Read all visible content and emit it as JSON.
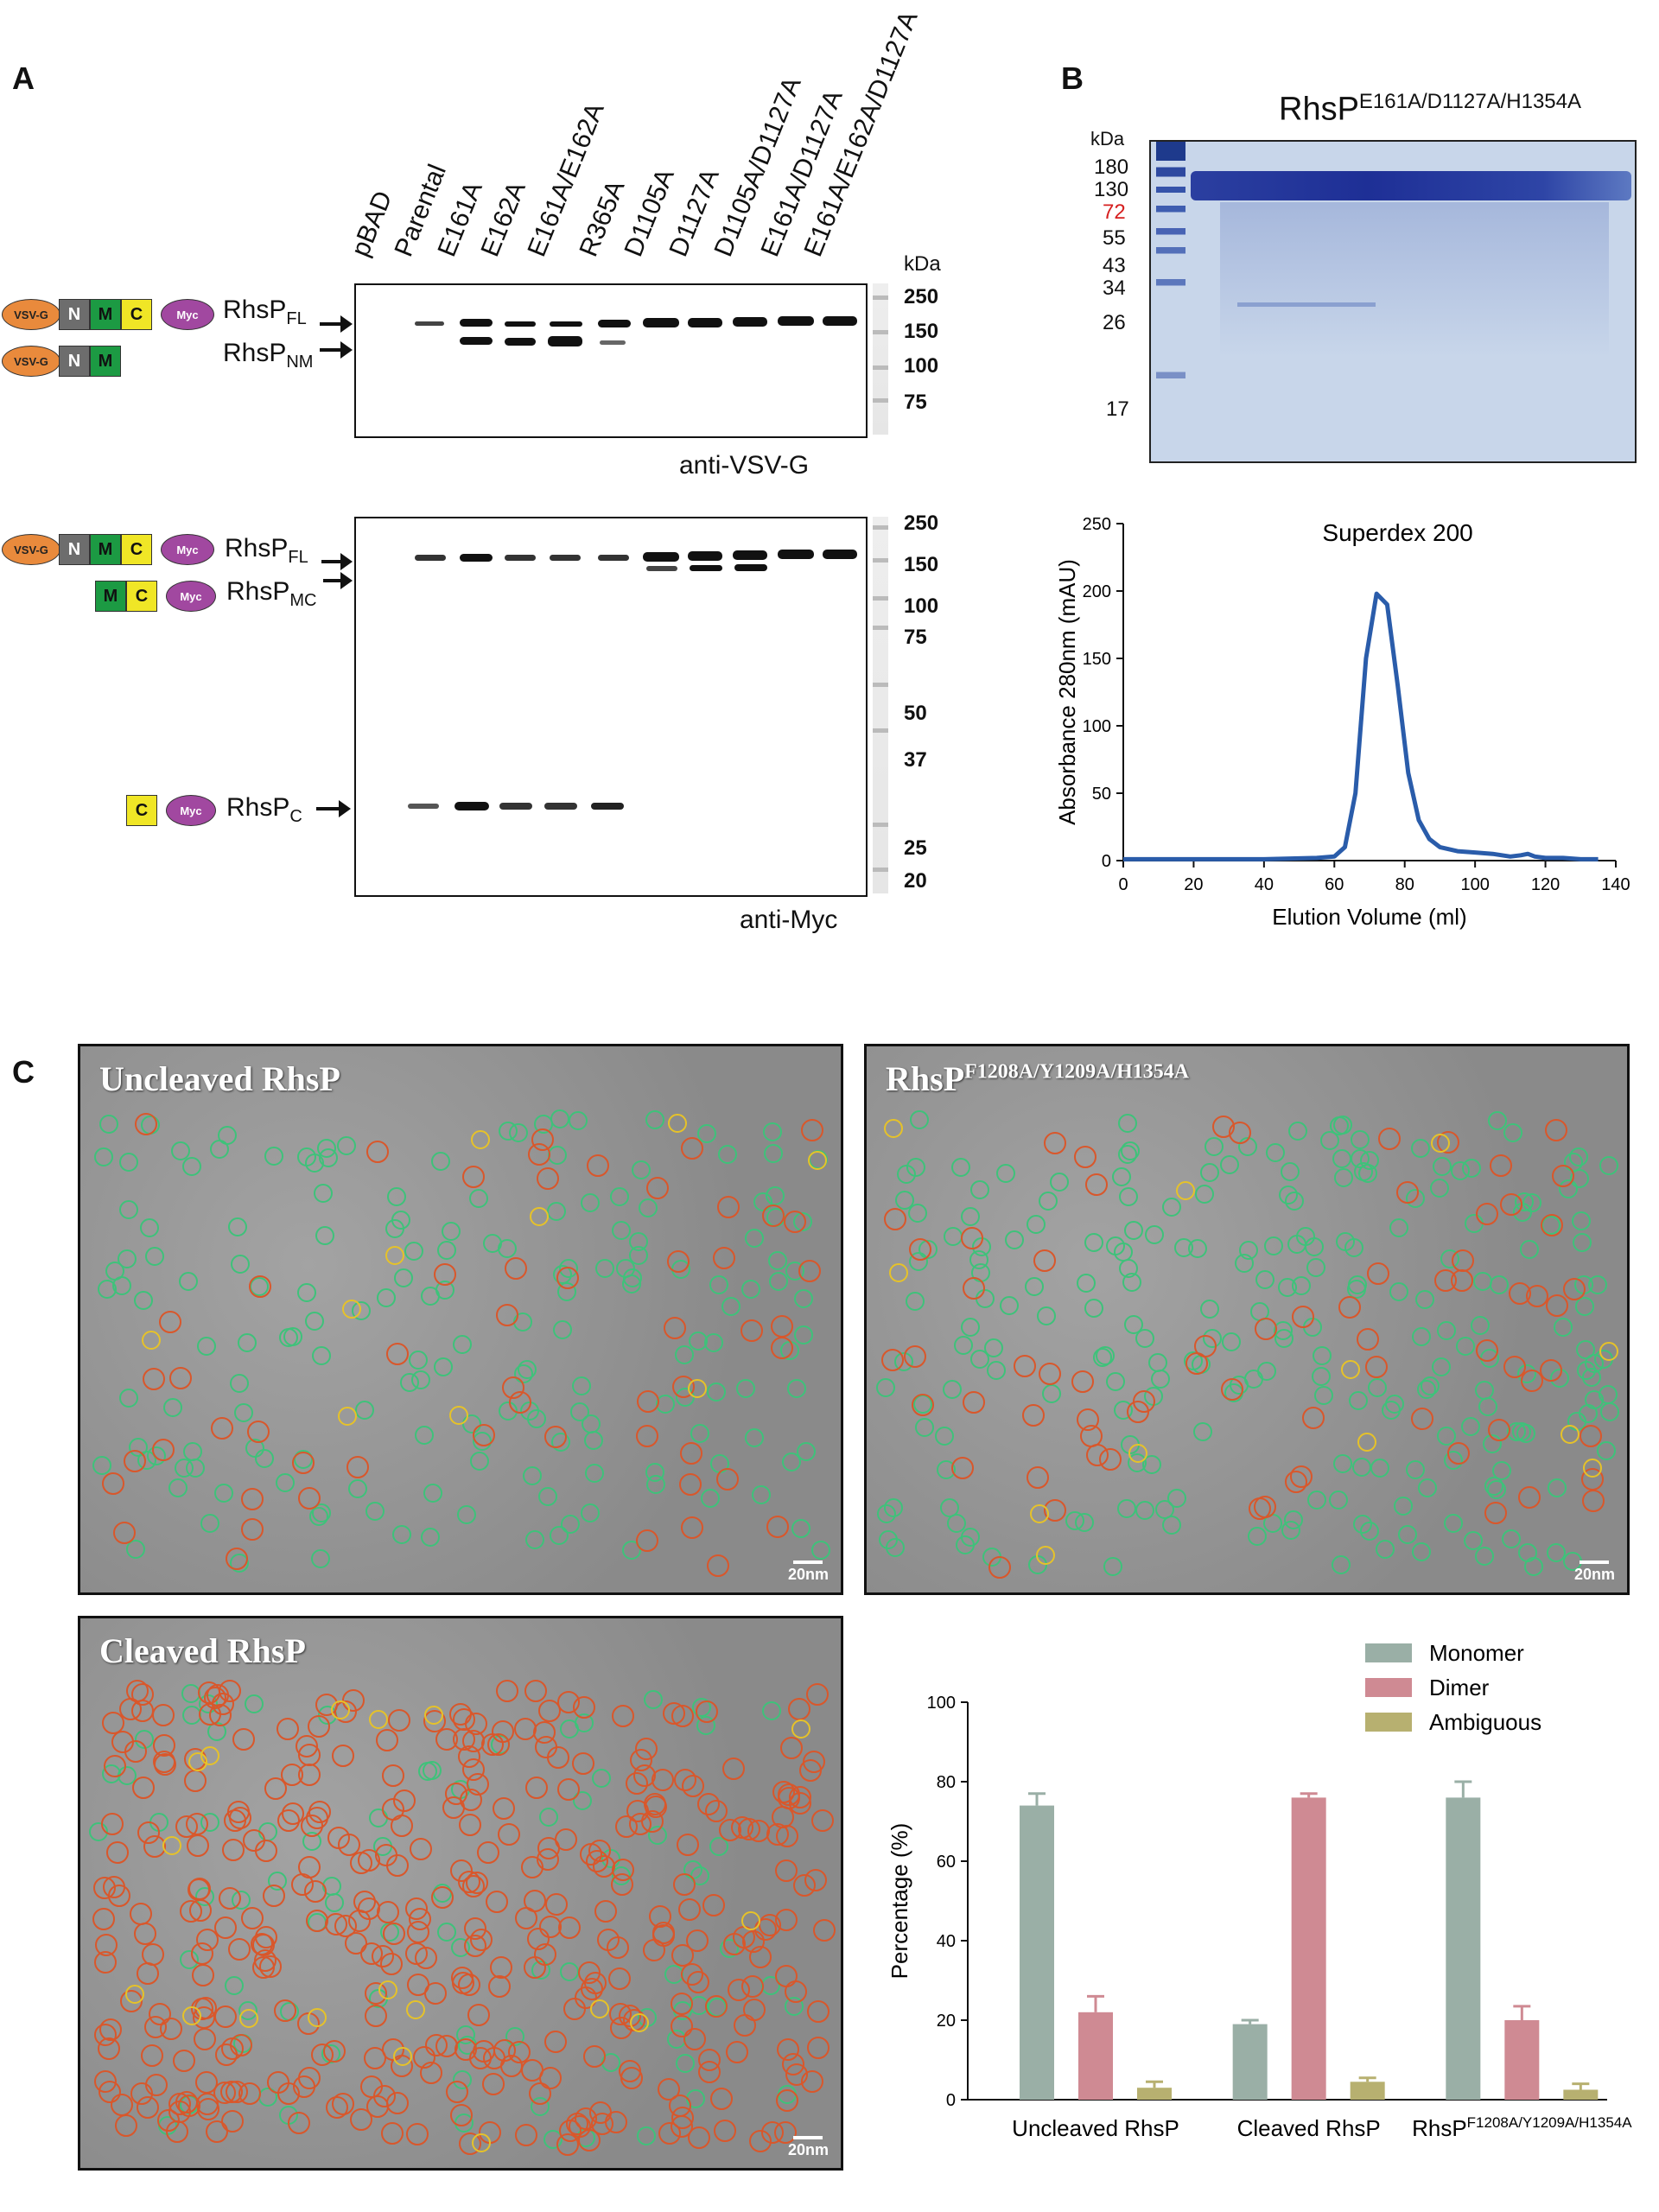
{
  "panels": {
    "a": "A",
    "b": "B",
    "c": "C"
  },
  "panel_a": {
    "lanes": [
      "pBAD",
      "Parental",
      "E161A",
      "E162A",
      "E161A/E162A",
      "R365A",
      "D1105A",
      "D1127A",
      "D1105A/D1127A",
      "E161A/D1127A",
      "E161A/E162A/D1127A"
    ],
    "kda_unit": "kDa",
    "blot1": {
      "antibody": "anti-VSV-G",
      "markers": [
        "250",
        "150",
        "100",
        "75"
      ],
      "labels": {
        "fl_main": "RhsP",
        "fl_sub": "FL",
        "nm_main": "RhsP",
        "nm_sub": "NM"
      }
    },
    "blot2": {
      "antibody": "anti-Myc",
      "markers": [
        "250",
        "150",
        "100",
        "75",
        "50",
        "37",
        "25",
        "20"
      ],
      "labels": {
        "fl_main": "RhsP",
        "fl_sub": "FL",
        "mc_main": "RhsP",
        "mc_sub": "MC",
        "c_main": "RhsP",
        "c_sub": "C"
      }
    },
    "construct_parts": {
      "vsvg": "VSV-G",
      "n": "N",
      "m": "M",
      "c": "C",
      "myc": "Myc"
    }
  },
  "panel_b": {
    "title_main": "RhsP",
    "title_sup": "E161A/D1127A/H1354A",
    "kda_unit": "kDa",
    "gel_markers": [
      "180",
      "130",
      "72",
      "55",
      "43",
      "34",
      "26",
      "17"
    ],
    "highlight_marker": "72",
    "highlight_color": "#d62020",
    "chart_data": {
      "type": "line",
      "title": "Superdex 200",
      "xlabel": "Elution Volume (ml)",
      "ylabel": "Absorbance 280nm (mAU)",
      "xlim": [
        0,
        140
      ],
      "ylim": [
        0,
        250
      ],
      "xticks": [
        0,
        20,
        40,
        60,
        80,
        100,
        120,
        140
      ],
      "yticks": [
        0,
        50,
        100,
        150,
        200,
        250
      ],
      "color": "#2a5caa",
      "x": [
        0,
        20,
        40,
        55,
        60,
        63,
        66,
        69,
        72,
        75,
        78,
        81,
        84,
        87,
        90,
        95,
        100,
        105,
        110,
        113,
        115,
        117,
        120,
        125,
        130,
        135
      ],
      "y": [
        1,
        1,
        1,
        2,
        3,
        10,
        50,
        150,
        198,
        190,
        130,
        65,
        30,
        16,
        10,
        7,
        6,
        5,
        3,
        4,
        5,
        3,
        2,
        2,
        1,
        1
      ]
    }
  },
  "panel_c": {
    "micrographs": [
      {
        "title_main": "Uncleaved RhsP",
        "title_sup": "",
        "scale": "20nm"
      },
      {
        "title_main": "RhsP",
        "title_sup": "F1208A/Y1209A/H1354A",
        "scale": "20nm"
      },
      {
        "title_main": "Cleaved RhsP",
        "title_sup": "",
        "scale": "20nm"
      }
    ],
    "particle_colors": {
      "monomer": "#3ec27a",
      "dimer": "#d9572b",
      "ambiguous": "#e6c229"
    },
    "chart_data": {
      "type": "bar",
      "ylabel": "Percentage (%)",
      "ylim": [
        0,
        100
      ],
      "yticks": [
        0,
        20,
        40,
        60,
        80,
        100
      ],
      "categories": [
        "Uncleaved RhsP",
        "Cleaved RhsP",
        "RhsP"
      ],
      "category_sup": [
        "",
        "",
        "F1208A/Y1209A/H1354A"
      ],
      "legend_position": "top-right",
      "series": [
        {
          "name": "Monomer",
          "color": "#9aafa6",
          "values": [
            74,
            19,
            76
          ],
          "errors": [
            3,
            1,
            4
          ]
        },
        {
          "name": "Dimer",
          "color": "#cf8a93",
          "values": [
            22,
            76,
            20
          ],
          "errors": [
            4,
            1,
            3.5
          ]
        },
        {
          "name": "Ambiguous",
          "color": "#b7b070",
          "values": [
            3,
            4.5,
            2.5
          ],
          "errors": [
            1.5,
            1,
            1.5
          ]
        }
      ]
    }
  }
}
